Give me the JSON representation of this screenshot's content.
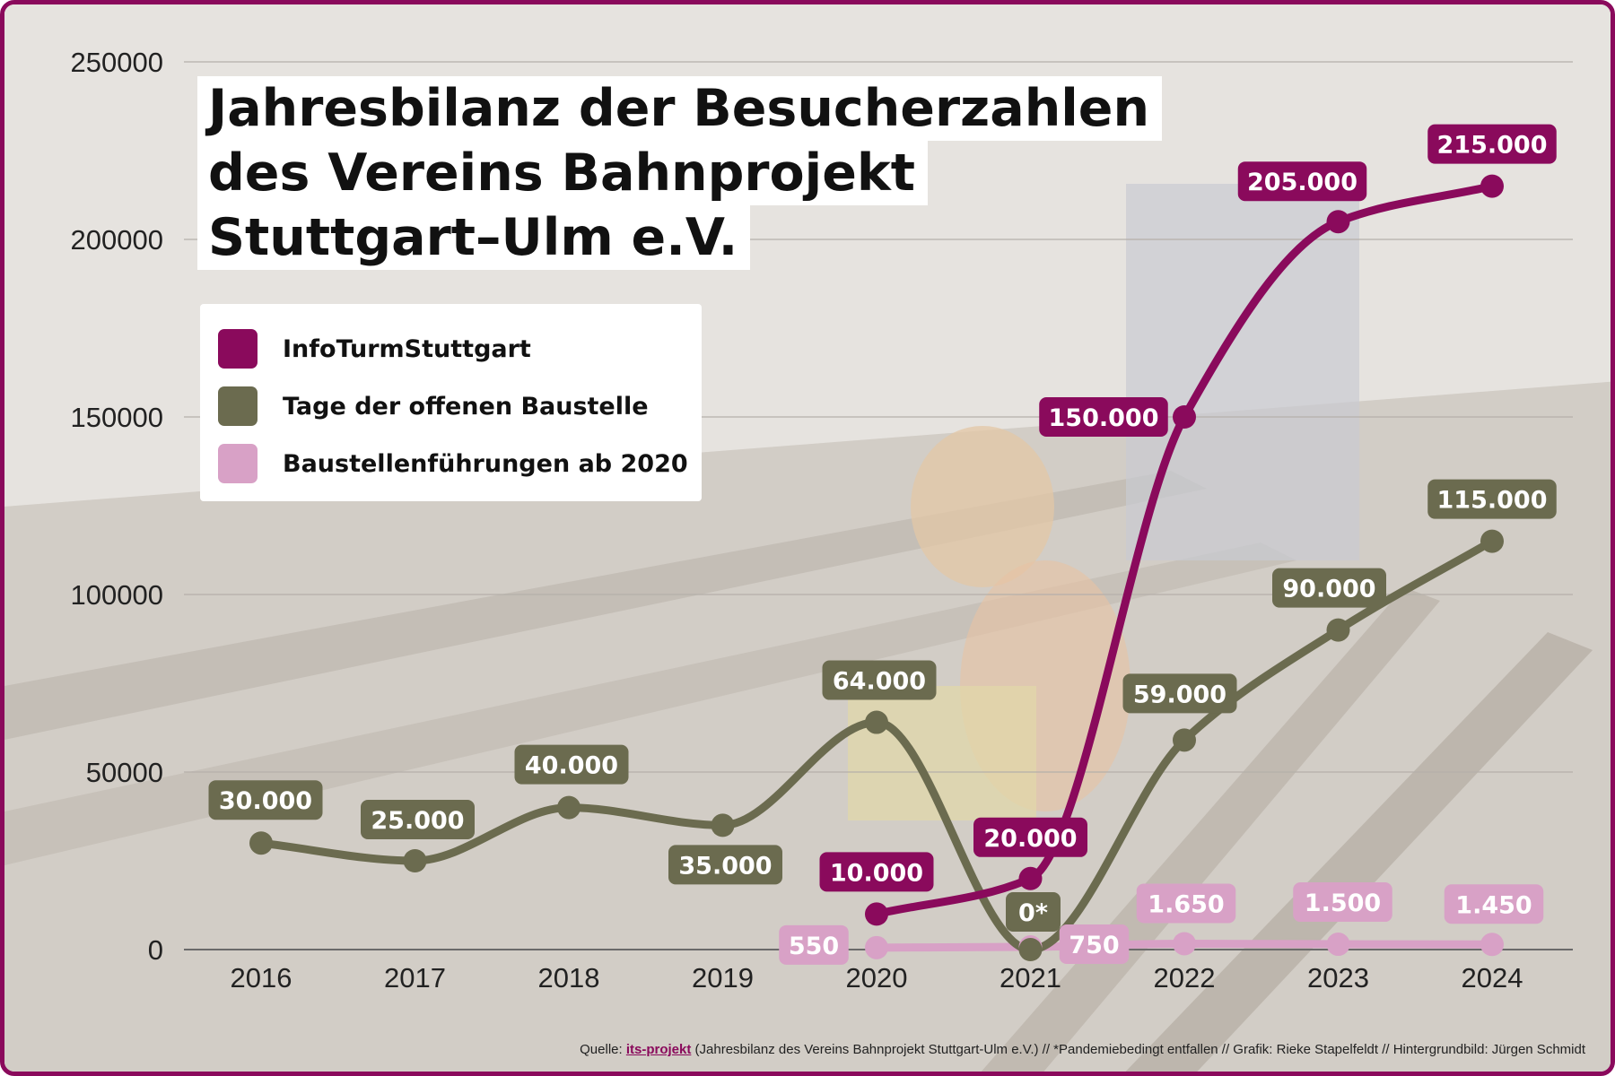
{
  "colors": {
    "frame": "#8a0a5c",
    "infoturm": "#8a0a5c",
    "tage": "#6b6b4f",
    "fuehrungen": "#d8a1c6"
  },
  "chart_data": {
    "type": "line",
    "title": "Jahresbilanz der Besucherzahlen des Vereins Bahnprojekt Stuttgart–Ulm e.V.",
    "title_lines": [
      "Jahresbilanz der Besucherzahlen",
      "des Vereins Bahnprojekt",
      "Stuttgart–Ulm e.V."
    ],
    "x": [
      "2016",
      "2017",
      "2018",
      "2019",
      "2020",
      "2021",
      "2022",
      "2023",
      "2024"
    ],
    "y_ticks": [
      "0",
      "50000",
      "100000",
      "150000",
      "200000",
      "250000"
    ],
    "ylim": [
      0,
      250000
    ],
    "grid": true,
    "legend_position": "top-left",
    "series": [
      {
        "name": "InfoTurmStuttgart",
        "color": "#8a0a5c",
        "values": [
          null,
          null,
          null,
          null,
          10000,
          20000,
          150000,
          205000,
          215000
        ],
        "labels": [
          "",
          "",
          "",
          "",
          "10.000",
          "20.000",
          "150.000",
          "205.000",
          "215.000"
        ]
      },
      {
        "name": "Tage der offenen Baustelle",
        "color": "#6b6b4f",
        "values": [
          30000,
          25000,
          40000,
          35000,
          64000,
          0,
          59000,
          90000,
          115000
        ],
        "labels": [
          "30.000",
          "25.000",
          "40.000",
          "35.000",
          "64.000",
          "0*",
          "59.000",
          "90.000",
          "115.000"
        ]
      },
      {
        "name": "Baustellenführungen ab 2020",
        "color": "#d8a1c6",
        "values": [
          null,
          null,
          null,
          null,
          550,
          750,
          1650,
          1500,
          1450
        ],
        "labels": [
          "",
          "",
          "",
          "",
          "550",
          "750",
          "1.650",
          "1.500",
          "1.450"
        ]
      }
    ]
  },
  "source": {
    "prefix": "Quelle: ",
    "link": "its-projekt",
    "suffix": " (Jahresbilanz des Vereins Bahnprojekt Stuttgart-Ulm e.V.) // *Pandemiebedingt entfallen // Grafik: Rieke Stapelfeldt // Hintergrundbild: Jürgen Schmidt"
  }
}
